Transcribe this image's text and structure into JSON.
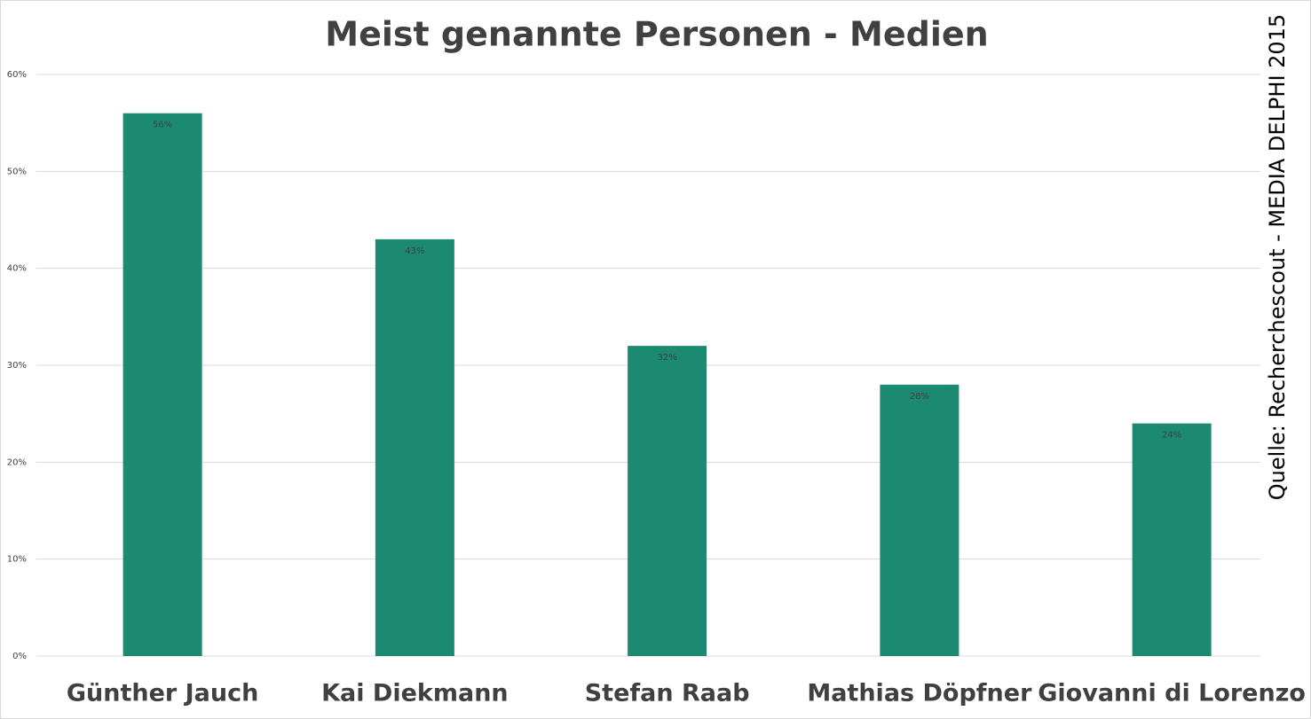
{
  "chart_data": {
    "type": "bar",
    "title": "Meist genannte Personen - Medien",
    "source": "Quelle: Recherchescout - MEDIA DELPHI 2015",
    "categories": [
      "Günther Jauch",
      "Kai Diekmann",
      "Stefan Raab",
      "Mathias Döpfner",
      "Giovanni di Lorenzo"
    ],
    "values": [
      56,
      43,
      32,
      28,
      24
    ],
    "value_labels": [
      "56%",
      "43%",
      "32%",
      "28%",
      "24%"
    ],
    "color": "#1b8a71",
    "ylim": [
      0,
      60
    ],
    "yticks": [
      {
        "value": 0,
        "label": "0%"
      },
      {
        "value": 10,
        "label": "10%"
      },
      {
        "value": 20,
        "label": "20%"
      },
      {
        "value": 30,
        "label": "30%"
      },
      {
        "value": 40,
        "label": "40%"
      },
      {
        "value": 50,
        "label": "50%"
      },
      {
        "value": 60,
        "label": "60%"
      }
    ],
    "grid": true
  }
}
